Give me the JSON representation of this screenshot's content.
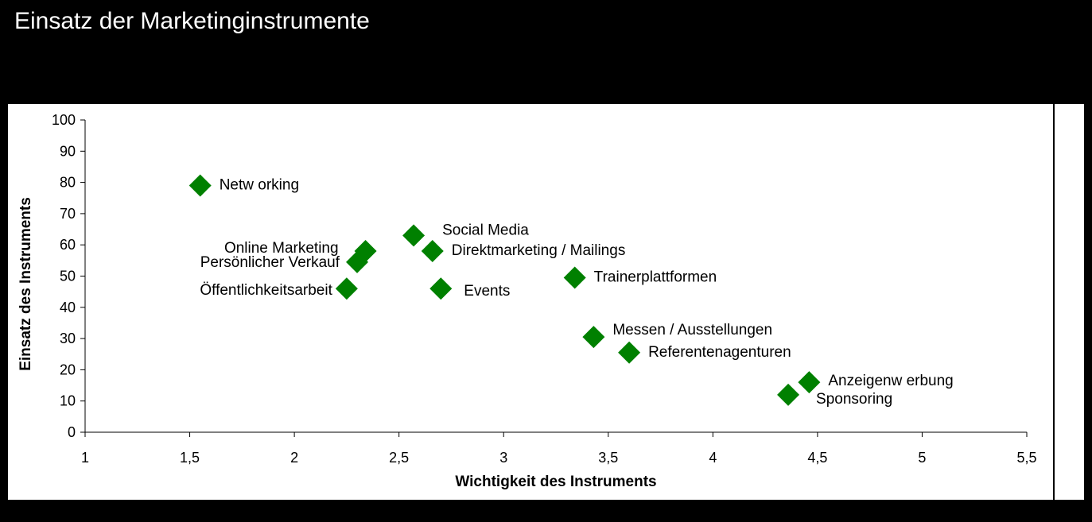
{
  "page": {
    "title": "Einsatz der Marketinginstrumente"
  },
  "colors": {
    "marker": "#008000",
    "axis": "#000000",
    "background": "#ffffff",
    "frame": "#000000"
  },
  "chart_data": {
    "type": "scatter",
    "title": "Einsatz der Marketinginstrumente",
    "xlabel": "Wichtigkeit des Instruments",
    "ylabel": "Einsatz des Instruments",
    "xlim": [
      1,
      5.5
    ],
    "ylim": [
      0,
      100
    ],
    "xticks": [
      1,
      1.5,
      2,
      2.5,
      3,
      3.5,
      4,
      4.5,
      5,
      5.5
    ],
    "xtick_labels": [
      "1",
      "1,5",
      "2",
      "2,5",
      "3",
      "3,5",
      "4",
      "4,5",
      "5",
      "5,5"
    ],
    "yticks": [
      0,
      10,
      20,
      30,
      40,
      50,
      60,
      70,
      80,
      90,
      100
    ],
    "ytick_labels": [
      "0",
      "10",
      "20",
      "30",
      "40",
      "50",
      "60",
      "70",
      "80",
      "90",
      "100"
    ],
    "grid": false,
    "legend": false,
    "marker": "diamond",
    "points": [
      {
        "label": "Netw orking",
        "x": 1.55,
        "y": 79,
        "label_side": "right"
      },
      {
        "label": "Social Media",
        "x": 2.57,
        "y": 63,
        "label_side": "right"
      },
      {
        "label": "Online Marketing",
        "x": 2.34,
        "y": 58,
        "label_side": "left"
      },
      {
        "label": "Direktmarketing / Mailings",
        "x": 2.66,
        "y": 58,
        "label_side": "right"
      },
      {
        "label": "Persönlicher Verkauf",
        "x": 2.3,
        "y": 54.5,
        "label_side": "left"
      },
      {
        "label": "Trainerplattformen",
        "x": 3.34,
        "y": 49.5,
        "label_side": "right"
      },
      {
        "label": "Öffentlichkeitsarbeit",
        "x": 2.25,
        "y": 46,
        "label_side": "left"
      },
      {
        "label": "Events",
        "x": 2.7,
        "y": 46,
        "label_side": "right"
      },
      {
        "label": "Messen / Ausstellungen",
        "x": 3.43,
        "y": 30.5,
        "label_side": "right"
      },
      {
        "label": "Referentenagenturen",
        "x": 3.6,
        "y": 25.5,
        "label_side": "right"
      },
      {
        "label": "Anzeigenw erbung",
        "x": 4.46,
        "y": 16,
        "label_side": "right"
      },
      {
        "label": "Sponsoring",
        "x": 4.36,
        "y": 12,
        "label_side": "right"
      }
    ]
  }
}
